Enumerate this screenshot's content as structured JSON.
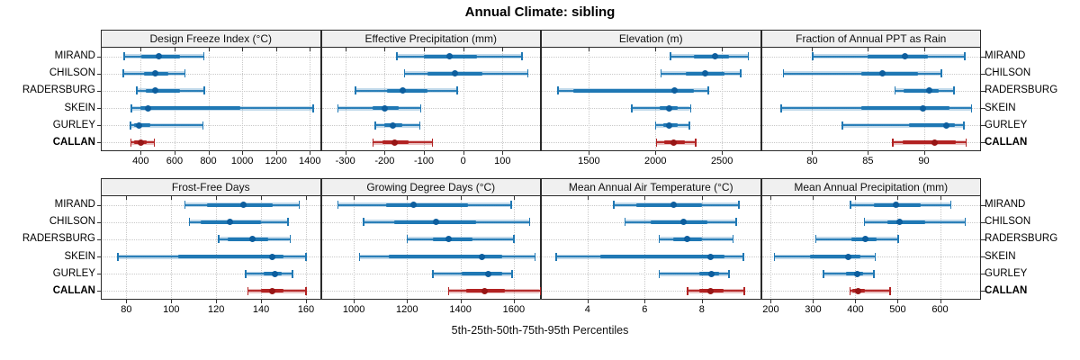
{
  "chart_data": {
    "type": "dotplot",
    "title": "Annual Climate: sibling",
    "caption": "5th-25th-50th-75th-95th Percentiles",
    "percentiles": [
      5,
      25,
      50,
      75,
      95
    ],
    "stations": [
      "MIRAND",
      "CHILSON",
      "RADERSBURG",
      "SKEIN",
      "GURLEY",
      "CALLAN"
    ],
    "highlight_station": "CALLAN",
    "legend_position": "none",
    "grid": "dotted",
    "colors": {
      "series": "#1f78b4",
      "series_dot": "#0d5e9e",
      "highlight": "#b22222",
      "highlight_dot": "#971616",
      "grid": "#c9c9c9",
      "panel_header_bg": "#f0f0f0",
      "panel_border": "#2a2a2a"
    },
    "panels": [
      {
        "title": "Design Freeze Index (°C)",
        "row": 0,
        "col": 0,
        "xlim": [
          170,
          1470
        ],
        "ticks": [
          400,
          600,
          800,
          1000,
          1200,
          1400
        ],
        "series": [
          [
            300,
            405,
            505,
            635,
            775
          ],
          [
            295,
            420,
            487,
            565,
            662
          ],
          [
            377,
            432,
            487,
            633,
            777
          ],
          [
            345,
            400,
            442,
            990,
            1420
          ],
          [
            338,
            360,
            392,
            455,
            770
          ],
          [
            340,
            363,
            400,
            437,
            482
          ]
        ]
      },
      {
        "title": "Effective Precipitation (mm)",
        "row": 0,
        "col": 1,
        "xlim": [
          -360,
          200
        ],
        "ticks": [
          -300,
          -200,
          -100,
          0,
          100
        ],
        "series": [
          [
            -170,
            -100,
            -35,
            35,
            150
          ],
          [
            -150,
            -90,
            -20,
            50,
            165
          ],
          [
            -275,
            -195,
            -155,
            -90,
            -15
          ],
          [
            -320,
            -230,
            -200,
            -165,
            -108
          ],
          [
            -225,
            -200,
            -180,
            -155,
            -110
          ],
          [
            -230,
            -205,
            -175,
            -140,
            -78
          ]
        ]
      },
      {
        "title": "Elevation (m)",
        "row": 0,
        "col": 2,
        "xlim": [
          1145,
          2800
        ],
        "ticks": [
          1500,
          2000,
          2500
        ],
        "series": [
          [
            2110,
            2290,
            2445,
            2550,
            2700
          ],
          [
            2040,
            2230,
            2370,
            2520,
            2640
          ],
          [
            1263,
            1383,
            2140,
            2290,
            2400
          ],
          [
            1820,
            2030,
            2105,
            2170,
            2265
          ],
          [
            2000,
            2060,
            2105,
            2165,
            2255
          ],
          [
            2005,
            2065,
            2135,
            2220,
            2305
          ]
        ]
      },
      {
        "title": "Fraction of Annual PPT as Rain",
        "row": 0,
        "col": 3,
        "xlim": [
          75.5,
          95.2
        ],
        "ticks": [
          80,
          85,
          90
        ],
        "series": [
          [
            80,
            85,
            88.3,
            90.4,
            93.7
          ],
          [
            77.4,
            84.4,
            86.3,
            89.5,
            91.6
          ],
          [
            87.4,
            88.2,
            90.5,
            91.3,
            92.7
          ],
          [
            77.2,
            84.4,
            89.9,
            92.3,
            94.3
          ],
          [
            82.7,
            88.7,
            92,
            92.8,
            93.6
          ],
          [
            87.2,
            88.1,
            91,
            92.9,
            93.8
          ]
        ]
      },
      {
        "title": "Frost-Free Days",
        "row": 1,
        "col": 0,
        "xlim": [
          69,
          167
        ],
        "ticks": [
          80,
          100,
          120,
          140,
          160
        ],
        "series": [
          [
            106,
            116,
            132,
            145,
            157
          ],
          [
            108,
            113,
            126,
            140,
            152
          ],
          [
            121,
            125,
            136,
            143,
            153
          ],
          [
            76,
            103,
            145,
            150,
            160
          ],
          [
            133,
            141,
            146,
            149,
            154
          ],
          [
            134,
            140,
            145,
            150,
            160
          ]
        ]
      },
      {
        "title": "Growing Degree Days (°C)",
        "row": 1,
        "col": 1,
        "xlim": [
          880,
          1705
        ],
        "ticks": [
          1000,
          1200,
          1400,
          1600
        ],
        "series": [
          [
            940,
            1120,
            1225,
            1430,
            1590
          ],
          [
            1035,
            1150,
            1310,
            1460,
            1660
          ],
          [
            1200,
            1295,
            1355,
            1445,
            1600
          ],
          [
            1020,
            1130,
            1480,
            1555,
            1680
          ],
          [
            1295,
            1405,
            1505,
            1555,
            1595
          ],
          [
            1355,
            1420,
            1490,
            1565,
            1700
          ]
        ]
      },
      {
        "title": "Mean Annual Air Temperature (°C)",
        "row": 1,
        "col": 2,
        "xlim": [
          2.4,
          10.1
        ],
        "ticks": [
          4,
          6,
          8
        ],
        "series": [
          [
            4.9,
            5.7,
            7.0,
            8.0,
            9.3
          ],
          [
            5.3,
            6.2,
            7.35,
            8.2,
            9.2
          ],
          [
            6.5,
            7.0,
            7.5,
            8.0,
            9.1
          ],
          [
            2.9,
            4.45,
            8.3,
            8.8,
            9.45
          ],
          [
            6.5,
            7.9,
            8.35,
            8.6,
            8.95
          ],
          [
            7.5,
            7.9,
            8.3,
            8.75,
            9.5
          ]
        ]
      },
      {
        "title": "Mean Annual Precipitation (mm)",
        "row": 1,
        "col": 3,
        "xlim": [
          179,
          699
        ],
        "ticks": [
          200,
          300,
          400,
          500,
          600
        ],
        "series": [
          [
            388,
            443,
            495,
            554,
            626
          ],
          [
            421,
            476,
            504,
            565,
            660
          ],
          [
            306,
            391,
            423,
            451,
            501
          ],
          [
            208,
            292,
            384,
            412,
            447
          ],
          [
            324,
            377,
            404,
            419,
            444
          ],
          [
            387,
            392,
            407,
            423,
            482
          ]
        ]
      }
    ]
  }
}
